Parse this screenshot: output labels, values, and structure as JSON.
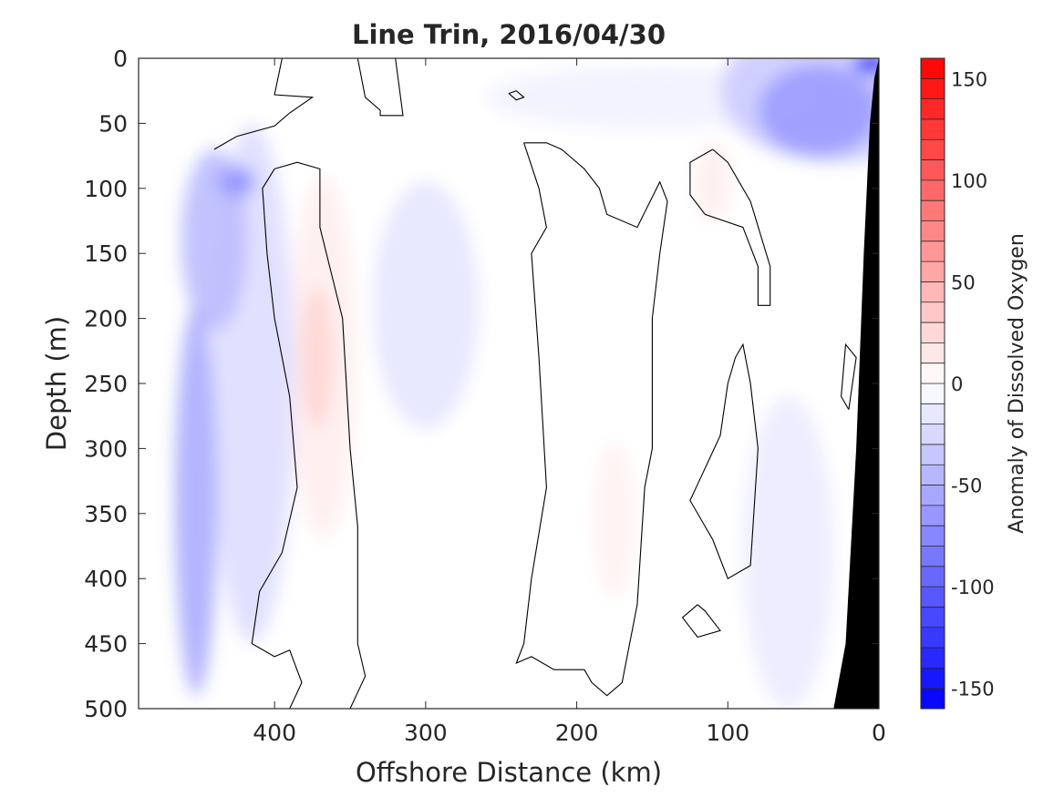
{
  "chart_data": {
    "type": "heatmap",
    "title": "Line Trin, 2016/04/30",
    "xlabel": "Offshore Distance (km)",
    "ylabel": "Depth (m)",
    "xlim": [
      490,
      0
    ],
    "ylim": [
      0,
      500
    ],
    "x_reversed": true,
    "y_reversed": true,
    "x_ticks": [
      400,
      300,
      200,
      100,
      0
    ],
    "y_ticks": [
      0,
      50,
      100,
      150,
      200,
      250,
      300,
      350,
      400,
      450,
      500
    ],
    "grid": false,
    "colorbar": {
      "label": "Anomaly of Dissolved Oxygen",
      "range": [
        -160,
        160
      ],
      "step": 10,
      "ticks": [
        150,
        100,
        50,
        0,
        -50,
        -100,
        -150
      ],
      "colormap": "blue-white-red",
      "low_color": "#0000ff",
      "mid_color": "#ffffff",
      "high_color": "#ff0000"
    },
    "land_color": "#000000",
    "contour_line_level": 0,
    "anomaly_fields": [
      {
        "x": 440,
        "y": 140,
        "rx": 22,
        "ry": 70,
        "value": -40
      },
      {
        "x": 425,
        "y": 95,
        "rx": 12,
        "ry": 12,
        "value": -65
      },
      {
        "x": 452,
        "y": 340,
        "rx": 14,
        "ry": 150,
        "value": -50
      },
      {
        "x": 415,
        "y": 250,
        "rx": 28,
        "ry": 200,
        "value": -20
      },
      {
        "x": 372,
        "y": 230,
        "rx": 11,
        "ry": 55,
        "value": 25
      },
      {
        "x": 368,
        "y": 230,
        "rx": 22,
        "ry": 140,
        "value": 10
      },
      {
        "x": 300,
        "y": 190,
        "rx": 35,
        "ry": 95,
        "value": -15
      },
      {
        "x": 40,
        "y": 40,
        "rx": 40,
        "ry": 35,
        "value": -60
      },
      {
        "x": 30,
        "y": 25,
        "rx": 75,
        "ry": 55,
        "value": -30
      },
      {
        "x": 5,
        "y": 4,
        "rx": 12,
        "ry": 8,
        "value": -130
      },
      {
        "x": 110,
        "y": 95,
        "rx": 12,
        "ry": 30,
        "value": 10
      },
      {
        "x": 175,
        "y": 355,
        "rx": 14,
        "ry": 60,
        "value": 8
      },
      {
        "x": 60,
        "y": 380,
        "rx": 30,
        "ry": 120,
        "value": -12
      },
      {
        "x": 150,
        "y": 30,
        "rx": 110,
        "ry": 25,
        "value": -8
      }
    ],
    "zero_contours": [
      [
        [
          440,
          70
        ],
        [
          425,
          60
        ],
        [
          400,
          52
        ],
        [
          390,
          42
        ],
        [
          375,
          30
        ],
        [
          400,
          28
        ],
        [
          395,
          0
        ]
      ],
      [
        [
          345,
          0
        ],
        [
          340,
          30
        ],
        [
          330,
          40
        ],
        [
          330,
          44
        ],
        [
          315,
          44
        ],
        [
          320,
          0
        ]
      ],
      [
        [
          245,
          27
        ],
        [
          240,
          32
        ],
        [
          235,
          30
        ],
        [
          240,
          25
        ],
        [
          245,
          27
        ]
      ],
      [
        [
          400,
          85
        ],
        [
          385,
          80
        ],
        [
          370,
          85
        ],
        [
          370,
          130
        ],
        [
          355,
          200
        ],
        [
          350,
          300
        ],
        [
          345,
          360
        ],
        [
          345,
          450
        ],
        [
          340,
          475
        ],
        [
          350,
          500
        ]
      ],
      [
        [
          400,
          85
        ],
        [
          408,
          100
        ],
        [
          405,
          150
        ],
        [
          400,
          200
        ],
        [
          390,
          260
        ],
        [
          385,
          330
        ],
        [
          395,
          380
        ],
        [
          410,
          410
        ],
        [
          415,
          450
        ],
        [
          400,
          460
        ],
        [
          390,
          455
        ],
        [
          382,
          480
        ],
        [
          390,
          500
        ]
      ],
      [
        [
          235,
          65
        ],
        [
          225,
          100
        ],
        [
          220,
          130
        ],
        [
          230,
          150
        ],
        [
          225,
          230
        ],
        [
          220,
          330
        ],
        [
          230,
          400
        ],
        [
          235,
          450
        ],
        [
          240,
          465
        ],
        [
          230,
          460
        ],
        [
          215,
          470
        ],
        [
          195,
          470
        ],
        [
          190,
          480
        ],
        [
          180,
          490
        ],
        [
          170,
          480
        ],
        [
          160,
          420
        ],
        [
          155,
          330
        ],
        [
          150,
          300
        ],
        [
          150,
          200
        ],
        [
          145,
          150
        ],
        [
          140,
          110
        ],
        [
          145,
          95
        ],
        [
          160,
          130
        ],
        [
          180,
          120
        ],
        [
          185,
          100
        ],
        [
          195,
          85
        ],
        [
          210,
          70
        ],
        [
          220,
          65
        ],
        [
          235,
          65
        ]
      ],
      [
        [
          95,
          230
        ],
        [
          100,
          250
        ],
        [
          105,
          290
        ],
        [
          125,
          340
        ],
        [
          110,
          370
        ],
        [
          100,
          400
        ],
        [
          85,
          390
        ],
        [
          80,
          300
        ],
        [
          85,
          250
        ],
        [
          90,
          220
        ],
        [
          95,
          230
        ]
      ],
      [
        [
          120,
          420
        ],
        [
          130,
          430
        ],
        [
          120,
          445
        ],
        [
          105,
          440
        ],
        [
          115,
          425
        ],
        [
          120,
          420
        ]
      ],
      [
        [
          110,
          70
        ],
        [
          125,
          80
        ],
        [
          125,
          105
        ],
        [
          115,
          120
        ],
        [
          90,
          130
        ],
        [
          80,
          160
        ],
        [
          80,
          190
        ],
        [
          72,
          190
        ],
        [
          72,
          160
        ],
        [
          85,
          110
        ],
        [
          100,
          80
        ],
        [
          110,
          70
        ]
      ],
      [
        [
          20,
          270
        ],
        [
          15,
          230
        ],
        [
          22,
          220
        ],
        [
          25,
          260
        ],
        [
          20,
          270
        ]
      ]
    ],
    "land_boundary": [
      [
        0,
        0
      ],
      [
        0,
        500
      ],
      [
        30,
        500
      ],
      [
        22,
        450
      ],
      [
        15,
        300
      ],
      [
        10,
        150
      ],
      [
        6,
        50
      ],
      [
        3,
        15
      ]
    ]
  }
}
